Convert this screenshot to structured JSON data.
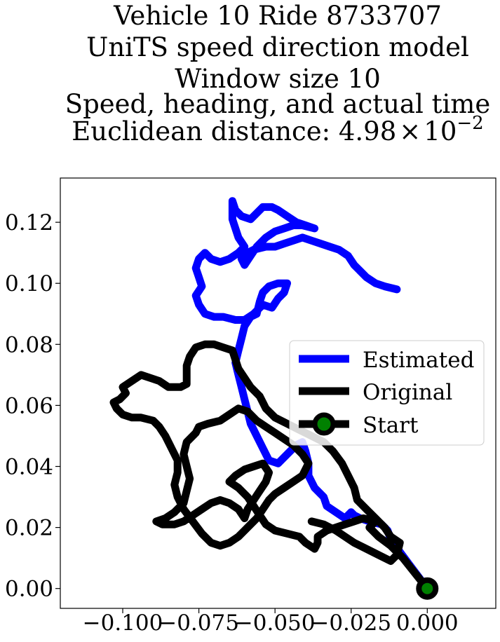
{
  "chart_data": {
    "type": "line",
    "title_lines": [
      "Vehicle 10 Ride 8733707",
      "UniTS speed direction model",
      "Window size 10",
      "Speed, heading, and actual time"
    ],
    "title_distance_prefix": "Euclidean distance: ",
    "title_distance_mantissa": "4.98",
    "title_distance_times": "×",
    "title_distance_base": "10",
    "title_distance_exponent": "−2",
    "xlim": [
      -0.1205,
      0.0225
    ],
    "ylim": [
      -0.0065,
      0.1345
    ],
    "x_ticks": [
      -0.1,
      -0.075,
      -0.05,
      -0.025,
      0.0
    ],
    "x_tick_labels": [
      "−0.100",
      "−0.075",
      "−0.050",
      "−0.025",
      "0.000"
    ],
    "y_ticks": [
      0.0,
      0.02,
      0.04,
      0.06,
      0.08,
      0.1,
      0.12
    ],
    "y_tick_labels": [
      "0.00",
      "0.02",
      "0.04",
      "0.06",
      "0.08",
      "0.10",
      "0.12"
    ],
    "grid": false,
    "legend_position": "center-right",
    "legend": [
      {
        "label": "Estimated",
        "color": "#0000ff",
        "marker": false
      },
      {
        "label": "Original",
        "color": "#000000",
        "marker": false
      },
      {
        "label": "Start",
        "color": "#000000",
        "marker": true,
        "marker_fill": "#008000"
      }
    ],
    "series": [
      {
        "name": "Estimated",
        "color": "#0000ff",
        "points": [
          [
            0.0,
            0.0
          ],
          [
            -0.003,
            0.004
          ],
          [
            -0.006,
            0.008
          ],
          [
            -0.009,
            0.012
          ],
          [
            -0.012,
            0.016
          ],
          [
            -0.013,
            0.019
          ],
          [
            -0.015,
            0.021
          ],
          [
            -0.019,
            0.022
          ],
          [
            -0.022,
            0.023
          ],
          [
            -0.024,
            0.024
          ],
          [
            -0.025,
            0.025
          ],
          [
            -0.027,
            0.023
          ],
          [
            -0.03,
            0.025
          ],
          [
            -0.033,
            0.027
          ],
          [
            -0.034,
            0.03
          ],
          [
            -0.037,
            0.033
          ],
          [
            -0.039,
            0.037
          ],
          [
            -0.039,
            0.041
          ],
          [
            -0.04,
            0.045
          ],
          [
            -0.041,
            0.048
          ],
          [
            -0.043,
            0.047
          ],
          [
            -0.045,
            0.045
          ],
          [
            -0.049,
            0.041
          ],
          [
            -0.052,
            0.042
          ],
          [
            -0.054,
            0.046
          ],
          [
            -0.056,
            0.05
          ],
          [
            -0.058,
            0.054
          ],
          [
            -0.059,
            0.058
          ],
          [
            -0.06,
            0.062
          ],
          [
            -0.061,
            0.066
          ],
          [
            -0.062,
            0.07
          ],
          [
            -0.063,
            0.074
          ],
          [
            -0.062,
            0.078
          ],
          [
            -0.061,
            0.082
          ],
          [
            -0.06,
            0.086
          ],
          [
            -0.058,
            0.089
          ],
          [
            -0.056,
            0.09
          ],
          [
            -0.055,
            0.094
          ],
          [
            -0.054,
            0.097
          ],
          [
            -0.052,
            0.099
          ],
          [
            -0.049,
            0.1
          ],
          [
            -0.046,
            0.1
          ],
          [
            -0.047,
            0.097
          ],
          [
            -0.049,
            0.095
          ],
          [
            -0.051,
            0.092
          ],
          [
            -0.054,
            0.093
          ],
          [
            -0.057,
            0.09
          ],
          [
            -0.06,
            0.088
          ],
          [
            -0.063,
            0.088
          ],
          [
            -0.067,
            0.089
          ],
          [
            -0.07,
            0.089
          ],
          [
            -0.073,
            0.09
          ],
          [
            -0.075,
            0.093
          ],
          [
            -0.076,
            0.096
          ],
          [
            -0.074,
            0.099
          ],
          [
            -0.075,
            0.102
          ],
          [
            -0.076,
            0.105
          ],
          [
            -0.075,
            0.108
          ],
          [
            -0.073,
            0.11
          ],
          [
            -0.071,
            0.108
          ],
          [
            -0.068,
            0.107
          ],
          [
            -0.065,
            0.108
          ],
          [
            -0.062,
            0.11
          ],
          [
            -0.06,
            0.112
          ],
          [
            -0.062,
            0.115
          ],
          [
            -0.063,
            0.118
          ],
          [
            -0.064,
            0.121
          ],
          [
            -0.064,
            0.124
          ],
          [
            -0.064,
            0.127
          ],
          [
            -0.063,
            0.124
          ],
          [
            -0.061,
            0.122
          ],
          [
            -0.058,
            0.121
          ],
          [
            -0.056,
            0.123
          ],
          [
            -0.054,
            0.125
          ],
          [
            -0.051,
            0.125
          ],
          [
            -0.049,
            0.124
          ],
          [
            -0.046,
            0.122
          ],
          [
            -0.043,
            0.12
          ],
          [
            -0.04,
            0.119
          ],
          [
            -0.037,
            0.118
          ],
          [
            -0.041,
            0.119
          ],
          [
            -0.044,
            0.119
          ],
          [
            -0.047,
            0.118
          ],
          [
            -0.05,
            0.117
          ],
          [
            -0.053,
            0.115
          ],
          [
            -0.056,
            0.112
          ],
          [
            -0.058,
            0.109
          ],
          [
            -0.06,
            0.106
          ],
          [
            -0.061,
            0.108
          ],
          [
            -0.059,
            0.11
          ],
          [
            -0.057,
            0.111
          ],
          [
            -0.053,
            0.112
          ],
          [
            -0.05,
            0.112
          ],
          [
            -0.047,
            0.113
          ],
          [
            -0.044,
            0.114
          ],
          [
            -0.041,
            0.115
          ],
          [
            -0.038,
            0.114
          ],
          [
            -0.035,
            0.113
          ],
          [
            -0.032,
            0.112
          ],
          [
            -0.029,
            0.111
          ],
          [
            -0.026,
            0.109
          ],
          [
            -0.024,
            0.106
          ],
          [
            -0.022,
            0.104
          ],
          [
            -0.02,
            0.102
          ],
          [
            -0.017,
            0.1
          ],
          [
            -0.014,
            0.099
          ],
          [
            -0.01,
            0.098
          ]
        ]
      },
      {
        "name": "Original",
        "color": "#000000",
        "points": [
          [
            0.0,
            0.0
          ],
          [
            -0.004,
            0.005
          ],
          [
            -0.008,
            0.01
          ],
          [
            -0.012,
            0.014
          ],
          [
            -0.016,
            0.017
          ],
          [
            -0.019,
            0.02
          ],
          [
            -0.017,
            0.022
          ],
          [
            -0.021,
            0.023
          ],
          [
            -0.024,
            0.022
          ],
          [
            -0.027,
            0.021
          ],
          [
            -0.03,
            0.02
          ],
          [
            -0.033,
            0.019
          ],
          [
            -0.036,
            0.017
          ],
          [
            -0.036,
            0.015
          ],
          [
            -0.037,
            0.013
          ],
          [
            -0.04,
            0.015
          ],
          [
            -0.042,
            0.017
          ],
          [
            -0.046,
            0.018
          ],
          [
            -0.05,
            0.019
          ],
          [
            -0.053,
            0.021
          ],
          [
            -0.055,
            0.024
          ],
          [
            -0.057,
            0.027
          ],
          [
            -0.059,
            0.03
          ],
          [
            -0.062,
            0.033
          ],
          [
            -0.065,
            0.035
          ],
          [
            -0.063,
            0.037
          ],
          [
            -0.06,
            0.039
          ],
          [
            -0.057,
            0.04
          ],
          [
            -0.054,
            0.041
          ],
          [
            -0.052,
            0.038
          ],
          [
            -0.053,
            0.035
          ],
          [
            -0.055,
            0.032
          ],
          [
            -0.057,
            0.029
          ],
          [
            -0.059,
            0.026
          ],
          [
            -0.06,
            0.023
          ],
          [
            -0.062,
            0.026
          ],
          [
            -0.065,
            0.028
          ],
          [
            -0.068,
            0.029
          ],
          [
            -0.071,
            0.028
          ],
          [
            -0.074,
            0.026
          ],
          [
            -0.077,
            0.024
          ],
          [
            -0.08,
            0.022
          ],
          [
            -0.083,
            0.021
          ],
          [
            -0.087,
            0.021
          ],
          [
            -0.089,
            0.022
          ],
          [
            -0.086,
            0.023
          ],
          [
            -0.083,
            0.025
          ],
          [
            -0.08,
            0.028
          ],
          [
            -0.079,
            0.032
          ],
          [
            -0.078,
            0.036
          ],
          [
            -0.079,
            0.04
          ],
          [
            -0.08,
            0.044
          ],
          [
            -0.079,
            0.048
          ],
          [
            -0.076,
            0.051
          ],
          [
            -0.075,
            0.053
          ],
          [
            -0.072,
            0.054
          ],
          [
            -0.068,
            0.055
          ],
          [
            -0.065,
            0.057
          ],
          [
            -0.062,
            0.059
          ],
          [
            -0.059,
            0.058
          ],
          [
            -0.056,
            0.055
          ],
          [
            -0.053,
            0.053
          ],
          [
            -0.05,
            0.051
          ],
          [
            -0.047,
            0.049
          ],
          [
            -0.044,
            0.047
          ],
          [
            -0.041,
            0.044
          ],
          [
            -0.039,
            0.041
          ],
          [
            -0.041,
            0.037
          ],
          [
            -0.044,
            0.035
          ],
          [
            -0.047,
            0.033
          ],
          [
            -0.05,
            0.031
          ],
          [
            -0.052,
            0.029
          ],
          [
            -0.054,
            0.026
          ],
          [
            -0.056,
            0.023
          ],
          [
            -0.058,
            0.021
          ],
          [
            -0.06,
            0.019
          ],
          [
            -0.062,
            0.017
          ],
          [
            -0.065,
            0.015
          ],
          [
            -0.068,
            0.014
          ],
          [
            -0.071,
            0.015
          ],
          [
            -0.074,
            0.018
          ],
          [
            -0.077,
            0.022
          ],
          [
            -0.08,
            0.026
          ],
          [
            -0.082,
            0.03
          ],
          [
            -0.083,
            0.034
          ],
          [
            -0.082,
            0.038
          ],
          [
            -0.082,
            0.042
          ],
          [
            -0.084,
            0.046
          ],
          [
            -0.086,
            0.05
          ],
          [
            -0.088,
            0.053
          ],
          [
            -0.09,
            0.055
          ],
          [
            -0.094,
            0.056
          ],
          [
            -0.097,
            0.056
          ],
          [
            -0.1,
            0.057
          ],
          [
            -0.102,
            0.059
          ],
          [
            -0.103,
            0.061
          ],
          [
            -0.101,
            0.062
          ],
          [
            -0.099,
            0.064
          ],
          [
            -0.1,
            0.066
          ],
          [
            -0.097,
            0.068
          ],
          [
            -0.094,
            0.07
          ],
          [
            -0.091,
            0.069
          ],
          [
            -0.088,
            0.068
          ],
          [
            -0.085,
            0.066
          ],
          [
            -0.081,
            0.066
          ],
          [
            -0.079,
            0.067
          ],
          [
            -0.079,
            0.07
          ],
          [
            -0.079,
            0.073
          ],
          [
            -0.078,
            0.076
          ],
          [
            -0.076,
            0.079
          ],
          [
            -0.073,
            0.08
          ],
          [
            -0.07,
            0.08
          ],
          [
            -0.067,
            0.079
          ],
          [
            -0.064,
            0.078
          ],
          [
            -0.063,
            0.075
          ],
          [
            -0.062,
            0.072
          ],
          [
            -0.06,
            0.069
          ],
          [
            -0.058,
            0.066
          ],
          [
            -0.055,
            0.063
          ],
          [
            -0.053,
            0.059
          ],
          [
            -0.05,
            0.056
          ],
          [
            -0.046,
            0.054
          ],
          [
            -0.042,
            0.052
          ],
          [
            -0.038,
            0.05
          ],
          [
            -0.034,
            0.048
          ],
          [
            -0.031,
            0.045
          ],
          [
            -0.028,
            0.041
          ],
          [
            -0.026,
            0.037
          ],
          [
            -0.024,
            0.033
          ],
          [
            -0.023,
            0.029
          ],
          [
            -0.02,
            0.026
          ],
          [
            -0.017,
            0.023
          ],
          [
            -0.014,
            0.02
          ],
          [
            -0.012,
            0.017
          ],
          [
            -0.009,
            0.015
          ],
          [
            -0.01,
            0.011
          ],
          [
            -0.012,
            0.009
          ],
          [
            -0.016,
            0.011
          ],
          [
            -0.02,
            0.013
          ],
          [
            -0.024,
            0.015
          ],
          [
            -0.027,
            0.017
          ],
          [
            -0.03,
            0.019
          ],
          [
            -0.034,
            0.021
          ],
          [
            -0.038,
            0.022
          ]
        ]
      }
    ],
    "start_point": [
      0.0,
      0.0
    ]
  }
}
